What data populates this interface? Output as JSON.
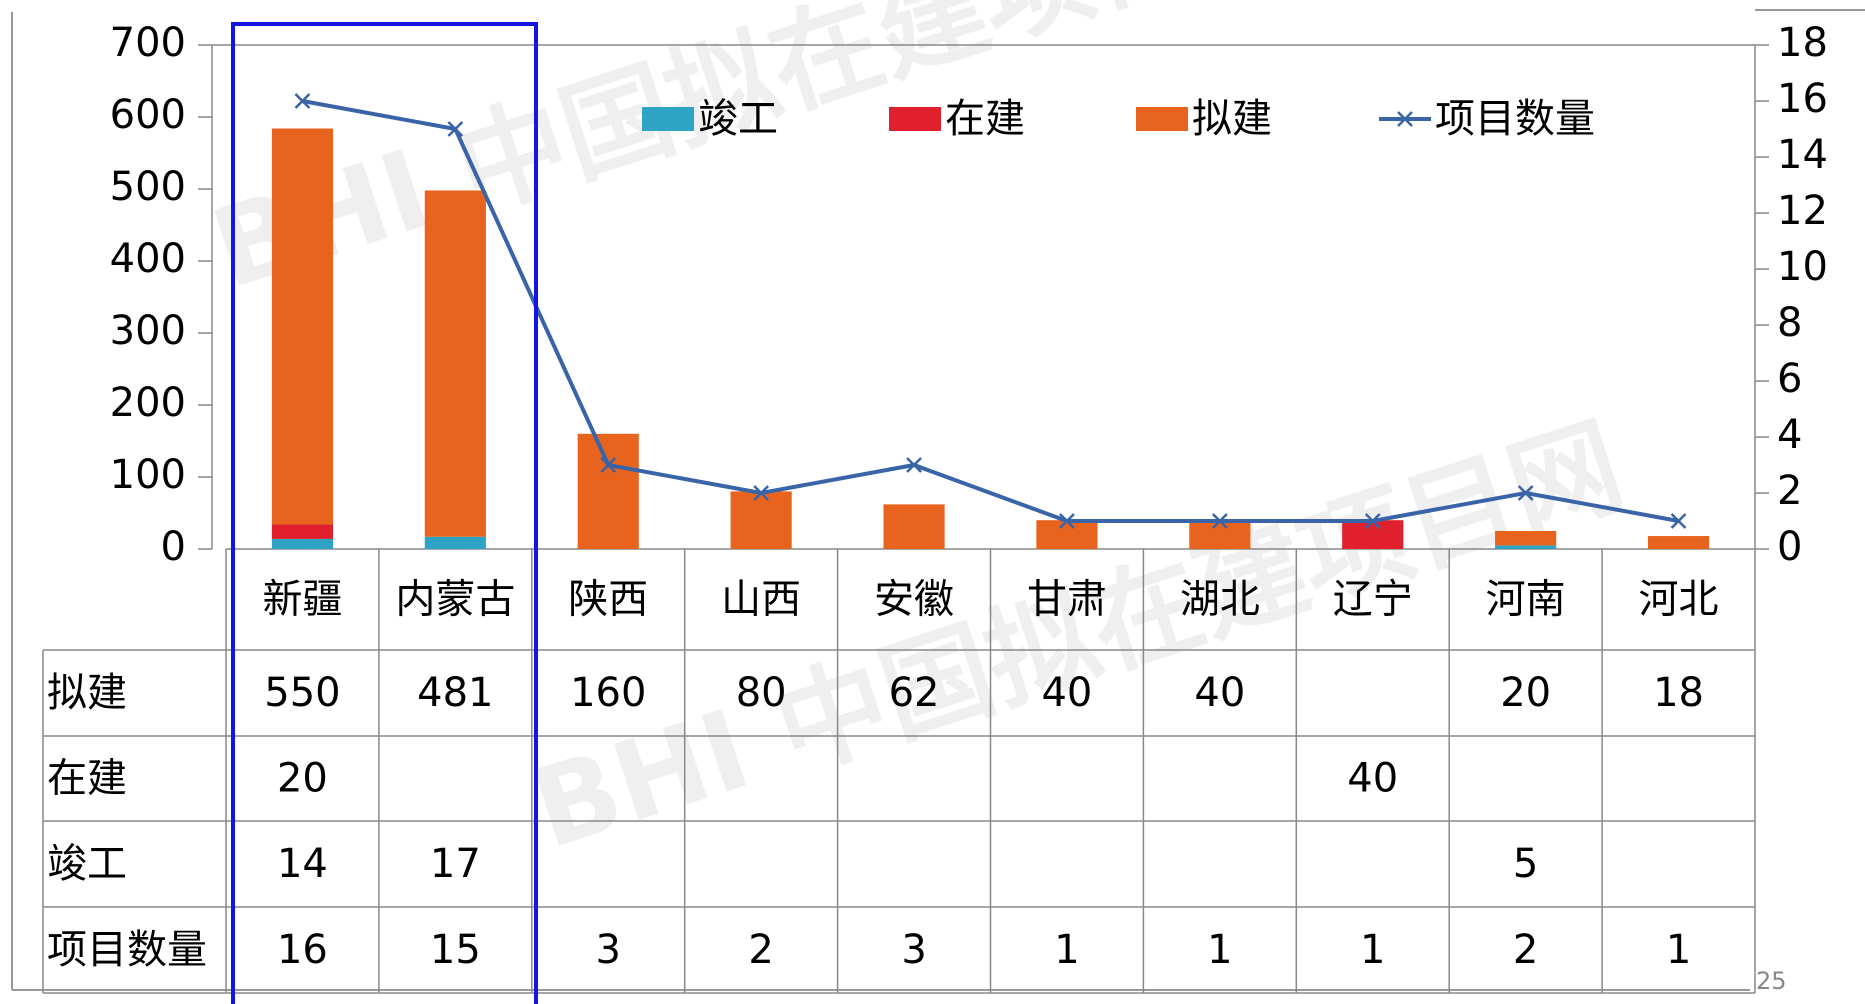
{
  "chart_data": {
    "type": "bar",
    "watermark": "BHI 中国拟在建项目网",
    "page_number": "25",
    "categories": [
      "新疆",
      "内蒙古",
      "陕西",
      "山西",
      "安徽",
      "甘肃",
      "湖北",
      "辽宁",
      "河南",
      "河北"
    ],
    "series": [
      {
        "name": "竣工",
        "color": "#2ea3c4",
        "values": [
          14,
          17,
          null,
          null,
          null,
          null,
          null,
          null,
          5,
          null
        ]
      },
      {
        "name": "在建",
        "color": "#e0202c",
        "values": [
          20,
          null,
          null,
          null,
          null,
          null,
          null,
          40,
          null,
          null
        ]
      },
      {
        "name": "拟建",
        "color": "#e8641e",
        "values": [
          550,
          481,
          160,
          80,
          62,
          40,
          40,
          null,
          20,
          18
        ]
      },
      {
        "name": "项目数量",
        "color": "#3a64a8",
        "type": "line",
        "axis": "y2",
        "values": [
          16,
          15,
          3,
          2,
          3,
          1,
          1,
          1,
          2,
          1
        ]
      }
    ],
    "table_rows": [
      2,
      1,
      0,
      3
    ],
    "stacked": true,
    "legend": "top",
    "ylim": [
      0,
      700
    ],
    "yticks": [
      0,
      100,
      200,
      300,
      400,
      500,
      600,
      700
    ],
    "y2lim": [
      0,
      18
    ],
    "y2ticks": [
      0,
      2,
      4,
      6,
      8,
      10,
      12,
      14,
      16,
      18
    ]
  }
}
